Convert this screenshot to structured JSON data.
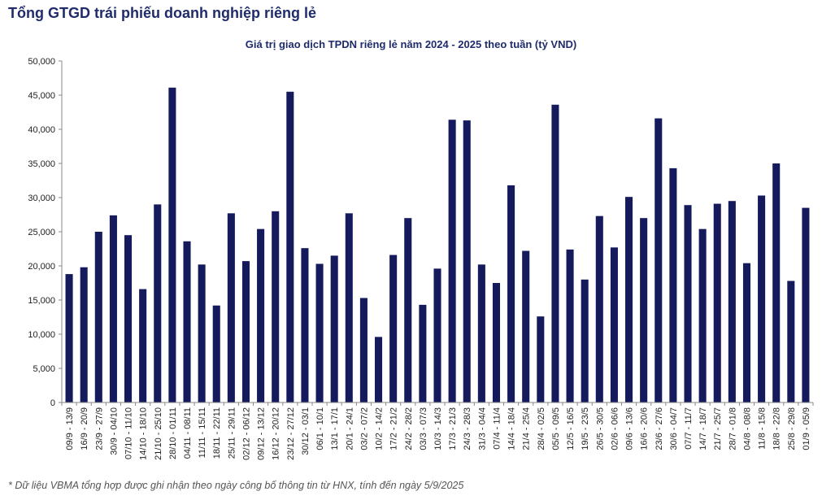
{
  "heading": "Tổng GTGD trái phiếu doanh nghiệp riêng lẻ",
  "footnote": "* Dữ liệu VBMA tổng hợp được ghi nhận theo ngày công bố thông tin từ HNX, tính đến ngày 5/9/2025",
  "colors": {
    "bar": "#141a5c",
    "heading": "#1f2b6b"
  },
  "chart_data": {
    "type": "bar",
    "title": "Giá trị giao dịch TPDN riêng lẻ năm 2024 - 2025 theo tuần (tỷ VND)",
    "xlabel": "",
    "ylabel": "",
    "ylim": [
      0,
      50000
    ],
    "yticks": [
      "0",
      "5,000",
      "10,000",
      "15,000",
      "20,000",
      "25,000",
      "30,000",
      "35,000",
      "40,000",
      "45,000",
      "50,000"
    ],
    "grid": false,
    "legend": "none",
    "categories": [
      "09/9 - 13/9",
      "16/9 - 20/9",
      "23/9 - 27/9",
      "30/9 - 04/10",
      "07/10 - 11/10",
      "14/10 - 18/10",
      "21/10 - 25/10",
      "28/10 - 01/11",
      "04/11 - 08/11",
      "11/11 - 15/11",
      "18/11 - 22/11",
      "25/11 - 29/11",
      "02/12 - 06/12",
      "09/12 - 13/12",
      "16/12 - 20/12",
      "23/12 - 27/12",
      "30/12 - 03/1",
      "06/1 - 10/1",
      "13/1 - 17/1",
      "20/1 - 24/1",
      "03/2 - 07/2",
      "10/2 - 14/2",
      "17/2 - 21/2",
      "24/2 - 28/2",
      "03/3 - 07/3",
      "10/3 - 14/3",
      "17/3 - 21/3",
      "24/3 - 28/3",
      "31/3 - 04/4",
      "07/4 - 11/4",
      "14/4 - 18/4",
      "21/4 - 25/4",
      "28/4 - 02/5",
      "05/5 - 09/5",
      "12/5 - 16/5",
      "19/5 - 23/5",
      "26/5 - 30/5",
      "02/6 - 06/6",
      "09/6 - 13/6",
      "16/6 - 20/6",
      "23/6 - 27/6",
      "30/6 - 04/7",
      "07/7 - 11/7",
      "14/7 - 18/7",
      "21/7 - 25/7",
      "28/7 - 01/8",
      "04/8 - 08/8",
      "11/8 - 15/8",
      "18/8 - 22/8",
      "25/8 - 29/8",
      "01/9 - 05/9"
    ],
    "values": [
      18800,
      19800,
      25000,
      27400,
      24500,
      16600,
      29000,
      46100,
      23600,
      20200,
      14200,
      27700,
      20700,
      25400,
      28000,
      45500,
      22600,
      20300,
      21500,
      27700,
      15300,
      9600,
      21600,
      27000,
      14300,
      19600,
      41400,
      41300,
      20200,
      17500,
      31800,
      22200,
      12600,
      43600,
      22400,
      18000,
      27300,
      22700,
      30100,
      27000,
      41600,
      34300,
      28900,
      25400,
      29100,
      29500,
      20400,
      30300,
      35000,
      17800,
      28500
    ]
  }
}
